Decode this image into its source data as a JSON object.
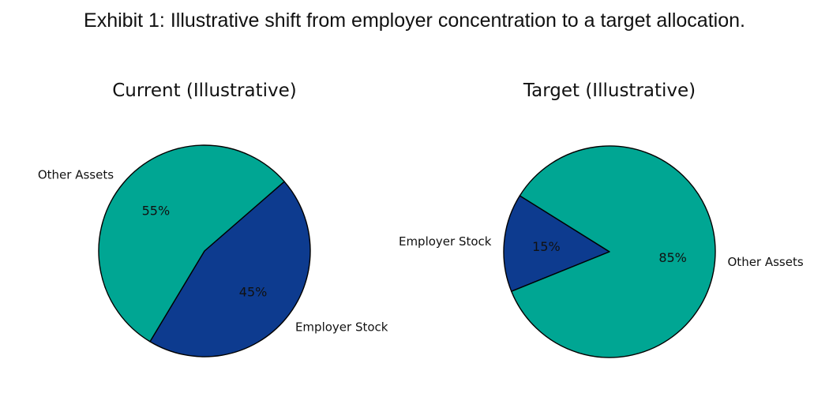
{
  "figure": {
    "title": "Exhibit 1: Illustrative shift from employer concentration to a target allocation."
  },
  "chart_data": [
    {
      "type": "pie",
      "title": "Current (Illustrative)",
      "slices": [
        {
          "label": "Employer Stock",
          "value": 45,
          "pct_label": "45%",
          "color": "#0d3b8f"
        },
        {
          "label": "Other Assets",
          "value": 55,
          "pct_label": "55%",
          "color": "#00a693"
        }
      ]
    },
    {
      "type": "pie",
      "title": "Target (Illustrative)",
      "slices": [
        {
          "label": "Employer Stock",
          "value": 15,
          "pct_label": "15%",
          "color": "#0d3b8f"
        },
        {
          "label": "Other Assets",
          "value": 85,
          "pct_label": "85%",
          "color": "#00a693"
        }
      ]
    }
  ]
}
